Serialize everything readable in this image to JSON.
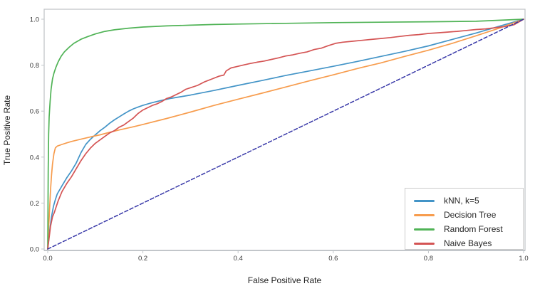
{
  "figure": {
    "background": "#ffffff",
    "frame_color": "#c2c6ca",
    "axis_line_color": "#a9aeb3",
    "tick_label_color": "#3a3a3a"
  },
  "chart_data": {
    "type": "line",
    "title": "",
    "xlabel": "False Positive Rate",
    "ylabel": "True Positive Rate",
    "xlim": [
      0,
      1
    ],
    "ylim": [
      0,
      1
    ],
    "grid": false,
    "legend_position": "lower right",
    "x_ticks": [
      "0.0",
      "0.2",
      "0.4",
      "0.6",
      "0.8",
      "1.0"
    ],
    "y_ticks": [
      "0.0",
      "0.2",
      "0.4",
      "0.6",
      "0.8",
      "1.0"
    ],
    "series": [
      {
        "name": "kNN, k=5",
        "id": "knn-curve",
        "color": "#4394c7",
        "style": "solid",
        "in_legend": true,
        "x": [
          0,
          0.004,
          0.008,
          0.012,
          0.016,
          0.02,
          0.03,
          0.04,
          0.05,
          0.06,
          0.07,
          0.08,
          0.09,
          0.1,
          0.11,
          0.12,
          0.13,
          0.14,
          0.15,
          0.16,
          0.17,
          0.18,
          0.19,
          0.2,
          0.22,
          0.24,
          0.26,
          0.28,
          0.3,
          0.35,
          0.4,
          0.45,
          0.5,
          0.55,
          0.6,
          0.65,
          0.7,
          0.75,
          0.8,
          0.85,
          0.9,
          0.95,
          1.0
        ],
        "y": [
          0,
          0.08,
          0.14,
          0.185,
          0.215,
          0.24,
          0.275,
          0.31,
          0.34,
          0.375,
          0.42,
          0.455,
          0.478,
          0.497,
          0.515,
          0.53,
          0.547,
          0.562,
          0.575,
          0.588,
          0.6,
          0.61,
          0.618,
          0.625,
          0.637,
          0.647,
          0.656,
          0.663,
          0.67,
          0.69,
          0.712,
          0.733,
          0.755,
          0.775,
          0.795,
          0.816,
          0.838,
          0.86,
          0.884,
          0.912,
          0.94,
          0.97,
          1.0
        ]
      },
      {
        "name": "Decision Tree",
        "id": "decision-tree-curve",
        "color": "#f79c4d",
        "style": "solid",
        "in_legend": true,
        "x": [
          0,
          0.002,
          0.004,
          0.006,
          0.008,
          0.01,
          0.013,
          0.016,
          0.02,
          0.03,
          0.04,
          0.05,
          0.07,
          0.09,
          0.11,
          0.13,
          0.15,
          0.18,
          0.2,
          0.25,
          0.3,
          0.35,
          0.4,
          0.45,
          0.5,
          0.55,
          0.6,
          0.65,
          0.7,
          0.75,
          0.8,
          0.85,
          0.9,
          0.95,
          1.0
        ],
        "y": [
          0,
          0.09,
          0.18,
          0.26,
          0.32,
          0.37,
          0.415,
          0.44,
          0.448,
          0.455,
          0.462,
          0.468,
          0.478,
          0.488,
          0.497,
          0.508,
          0.518,
          0.532,
          0.542,
          0.568,
          0.596,
          0.625,
          0.652,
          0.678,
          0.705,
          0.732,
          0.758,
          0.785,
          0.81,
          0.838,
          0.865,
          0.895,
          0.928,
          0.962,
          1.0
        ]
      },
      {
        "name": "Random Forest",
        "id": "random-forest-curve",
        "color": "#50b356",
        "style": "solid",
        "in_legend": true,
        "x": [
          0,
          0.001,
          0.002,
          0.003,
          0.005,
          0.007,
          0.01,
          0.013,
          0.017,
          0.022,
          0.028,
          0.035,
          0.045,
          0.055,
          0.07,
          0.085,
          0.1,
          0.12,
          0.14,
          0.17,
          0.2,
          0.25,
          0.3,
          0.35,
          0.4,
          0.5,
          0.6,
          0.7,
          0.8,
          0.9,
          1.0
        ],
        "y": [
          0,
          0.35,
          0.5,
          0.575,
          0.64,
          0.695,
          0.74,
          0.765,
          0.79,
          0.815,
          0.838,
          0.858,
          0.878,
          0.895,
          0.913,
          0.925,
          0.936,
          0.947,
          0.954,
          0.961,
          0.966,
          0.971,
          0.974,
          0.977,
          0.979,
          0.982,
          0.985,
          0.987,
          0.989,
          0.991,
          1.0
        ]
      },
      {
        "name": "Naive Bayes",
        "id": "naive-bayes-curve",
        "color": "#d45454",
        "style": "solid",
        "in_legend": true,
        "x": [
          0,
          0.003,
          0.006,
          0.01,
          0.014,
          0.018,
          0.022,
          0.03,
          0.04,
          0.05,
          0.06,
          0.07,
          0.08,
          0.09,
          0.1,
          0.11,
          0.12,
          0.13,
          0.14,
          0.15,
          0.16,
          0.17,
          0.18,
          0.19,
          0.2,
          0.21,
          0.22,
          0.23,
          0.24,
          0.25,
          0.26,
          0.27,
          0.28,
          0.29,
          0.3,
          0.315,
          0.33,
          0.345,
          0.36,
          0.37,
          0.375,
          0.385,
          0.395,
          0.41,
          0.425,
          0.44,
          0.455,
          0.47,
          0.485,
          0.5,
          0.515,
          0.53,
          0.545,
          0.56,
          0.575,
          0.59,
          0.605,
          0.62,
          0.64,
          0.66,
          0.68,
          0.7,
          0.72,
          0.74,
          0.76,
          0.78,
          0.8,
          0.82,
          0.84,
          0.86,
          0.88,
          0.9,
          0.92,
          0.94,
          0.96,
          0.98,
          1.0
        ],
        "y": [
          0,
          0.05,
          0.1,
          0.14,
          0.16,
          0.185,
          0.21,
          0.25,
          0.285,
          0.315,
          0.35,
          0.385,
          0.415,
          0.44,
          0.46,
          0.475,
          0.49,
          0.505,
          0.515,
          0.53,
          0.54,
          0.555,
          0.57,
          0.59,
          0.605,
          0.615,
          0.625,
          0.632,
          0.642,
          0.655,
          0.662,
          0.672,
          0.682,
          0.695,
          0.702,
          0.712,
          0.728,
          0.74,
          0.752,
          0.757,
          0.775,
          0.788,
          0.793,
          0.8,
          0.807,
          0.813,
          0.818,
          0.825,
          0.832,
          0.84,
          0.845,
          0.852,
          0.858,
          0.868,
          0.874,
          0.885,
          0.895,
          0.9,
          0.904,
          0.908,
          0.912,
          0.916,
          0.92,
          0.925,
          0.93,
          0.933,
          0.938,
          0.941,
          0.944,
          0.947,
          0.951,
          0.955,
          0.958,
          0.963,
          0.968,
          0.976,
          1.0
        ]
      },
      {
        "name": "",
        "id": "chance-diagonal",
        "color": "#3434a6",
        "style": "dashed",
        "in_legend": false,
        "x": [
          0,
          1
        ],
        "y": [
          0,
          1
        ]
      }
    ]
  }
}
